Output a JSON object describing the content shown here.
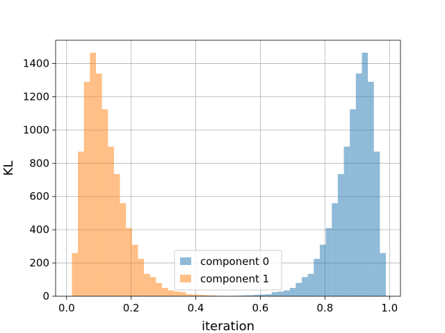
{
  "chart_data": {
    "type": "bar",
    "title": "",
    "xlabel": "iteration",
    "ylabel": "KL",
    "xlim": [
      -0.034,
      1.034
    ],
    "ylim": [
      0,
      1540
    ],
    "xticks": [
      0.0,
      0.2,
      0.4,
      0.6,
      0.8,
      1.0
    ],
    "xtick_labels": [
      "0.0",
      "0.2",
      "0.4",
      "0.6",
      "0.8",
      "1.0"
    ],
    "yticks": [
      0,
      200,
      400,
      600,
      800,
      1000,
      1200,
      1400
    ],
    "ytick_labels": [
      "0",
      "200",
      "400",
      "600",
      "800",
      "1000",
      "1200",
      "1400"
    ],
    "grid": true,
    "legend_position": "lower center",
    "bin_width": 0.0186,
    "series": [
      {
        "name": "component 0",
        "color": "#1f77b4",
        "alpha": 0.5,
        "bin_starts": [
          0.4865,
          0.5051,
          0.5237,
          0.5423,
          0.5609,
          0.5795,
          0.5981,
          0.6167,
          0.6353,
          0.6539,
          0.6725,
          0.6911,
          0.7097,
          0.7283,
          0.7469,
          0.7655,
          0.7841,
          0.8027,
          0.8213,
          0.8399,
          0.8585,
          0.8771,
          0.8957,
          0.9143,
          0.9329,
          0.9515,
          0.9701
        ],
        "values": [
          2,
          2,
          3,
          5,
          6,
          8,
          10,
          12,
          25,
          28,
          35,
          50,
          80,
          115,
          135,
          225,
          310,
          410,
          560,
          735,
          900,
          1125,
          1340,
          1465,
          1290,
          870,
          260
        ]
      },
      {
        "name": "component 1",
        "color": "#ff7f0e",
        "alpha": 0.5,
        "bin_starts": [
          0.0164,
          0.035,
          0.0536,
          0.0722,
          0.0908,
          0.1094,
          0.128,
          0.1466,
          0.1652,
          0.1838,
          0.2024,
          0.221,
          0.2396,
          0.2582,
          0.2768,
          0.2954,
          0.314,
          0.3326,
          0.3512,
          0.3698,
          0.3884,
          0.407,
          0.4256,
          0.4442,
          0.4628,
          0.4814,
          0.5
        ],
        "values": [
          260,
          870,
          1290,
          1465,
          1340,
          1125,
          900,
          735,
          560,
          410,
          310,
          225,
          135,
          115,
          80,
          50,
          35,
          28,
          25,
          12,
          10,
          8,
          6,
          5,
          3,
          2,
          2
        ]
      }
    ]
  }
}
